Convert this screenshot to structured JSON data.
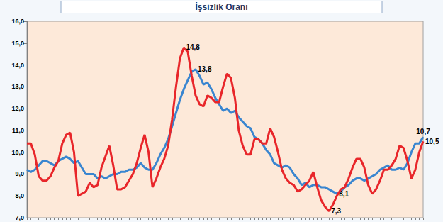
{
  "chart_data": {
    "type": "line",
    "title": "İşsizlik Oranı",
    "categories": [
      null,
      null,
      null,
      null,
      null,
      null,
      null,
      null,
      null,
      null,
      null,
      null,
      null,
      null,
      null,
      null,
      null,
      null,
      null,
      null,
      null,
      null,
      null,
      null,
      null,
      null,
      null,
      null,
      null,
      null,
      null,
      null,
      null,
      null,
      null,
      null,
      null,
      null,
      null,
      null,
      null,
      null,
      null,
      null,
      null,
      null,
      null,
      null,
      null,
      null,
      null,
      null,
      null,
      null,
      null,
      null,
      null,
      null,
      null,
      null,
      null,
      null,
      null,
      null,
      null,
      null,
      null,
      null,
      null,
      null,
      null,
      null,
      null,
      null,
      null,
      null,
      null,
      null,
      null,
      null,
      null,
      null,
      null,
      null,
      null,
      null,
      null,
      null,
      null,
      null,
      null,
      null,
      null,
      null,
      null,
      null,
      null,
      null,
      null,
      null,
      null,
      null
    ],
    "series": [
      {
        "color": "#3a86d0",
        "values": [
          9.2,
          9.1,
          9.2,
          9.4,
          9.6,
          9.6,
          9.5,
          9.4,
          9.6,
          9.7,
          9.8,
          9.7,
          9.5,
          9.6,
          9.3,
          9.0,
          9.0,
          9.0,
          8.8,
          8.9,
          8.8,
          8.9,
          9.0,
          9.0,
          9.1,
          9.1,
          9.2,
          9.2,
          9.3,
          9.5,
          9.3,
          9.2,
          9.2,
          9.5,
          9.9,
          10.2,
          10.6,
          11.2,
          11.8,
          12.4,
          12.9,
          13.3,
          13.7,
          13.8,
          13.5,
          13.1,
          13.2,
          12.9,
          12.5,
          12.2,
          11.9,
          12.0,
          11.8,
          11.9,
          11.6,
          11.4,
          11.2,
          11.1,
          10.7,
          10.6,
          10.4,
          10.1,
          9.9,
          9.5,
          9.4,
          9.3,
          9.4,
          9.3,
          9.0,
          8.8,
          8.5,
          8.6,
          8.4,
          8.5,
          8.5,
          8.4,
          8.4,
          8.3,
          8.2,
          8.1,
          8.2,
          8.4,
          8.5,
          8.7,
          8.8,
          8.8,
          8.7,
          8.8,
          8.9,
          9.0,
          9.2,
          9.3,
          9.4,
          9.2,
          9.2,
          9.3,
          9.2,
          9.5,
          10.0,
          10.4,
          10.4,
          10.7
        ],
        "annotations": [
          {
            "index": 43,
            "text": "13,8"
          },
          {
            "index": 79,
            "text": "8,1"
          },
          {
            "index": 101,
            "text": "10,7"
          }
        ]
      },
      {
        "color": "#e8262a",
        "values": [
          10.4,
          10.4,
          9.9,
          8.9,
          8.7,
          8.7,
          8.9,
          9.3,
          9.6,
          10.4,
          10.8,
          10.9,
          10.0,
          8.0,
          8.1,
          8.2,
          8.6,
          8.4,
          8.5,
          9.3,
          9.8,
          10.3,
          9.4,
          8.3,
          8.3,
          8.4,
          8.7,
          9.0,
          9.5,
          10.2,
          10.8,
          10.0,
          8.4,
          8.8,
          9.3,
          9.7,
          10.3,
          11.5,
          13.0,
          14.3,
          14.8,
          14.6,
          13.5,
          12.6,
          12.2,
          12.1,
          12.6,
          12.5,
          12.3,
          12.3,
          13.0,
          13.6,
          13.4,
          12.5,
          11.0,
          10.3,
          9.9,
          9.9,
          10.6,
          10.6,
          10.4,
          10.4,
          11.1,
          10.7,
          10.0,
          9.2,
          8.8,
          8.6,
          8.5,
          8.2,
          8.3,
          8.5,
          8.7,
          9.1,
          8.4,
          7.8,
          7.5,
          7.3,
          7.6,
          8.0,
          8.3,
          8.4,
          8.8,
          9.3,
          9.7,
          9.7,
          9.3,
          8.5,
          8.1,
          8.3,
          8.7,
          9.2,
          9.2,
          9.4,
          9.7,
          10.3,
          10.2,
          9.6,
          8.8,
          9.2,
          10.0,
          10.5
        ],
        "annotations": [
          {
            "index": 40,
            "text": "14,8"
          },
          {
            "index": 77,
            "text": "7,3"
          },
          {
            "index": 101,
            "text": "10,5"
          }
        ]
      }
    ],
    "ylim": [
      7,
      16
    ],
    "yticks": [
      {
        "value": 7,
        "label": "7,0"
      },
      {
        "value": 8,
        "label": "8,0"
      },
      {
        "value": 9,
        "label": "9,0"
      },
      {
        "value": 10,
        "label": "10,0"
      },
      {
        "value": 11,
        "label": "11,0"
      },
      {
        "value": 12,
        "label": "12,0"
      },
      {
        "value": 13,
        "label": "13,0"
      },
      {
        "value": 14,
        "label": "14,0"
      },
      {
        "value": 15,
        "label": "15,0"
      },
      {
        "value": 16,
        "label": "16,0"
      }
    ],
    "grid": false,
    "tick_labels": "y"
  }
}
